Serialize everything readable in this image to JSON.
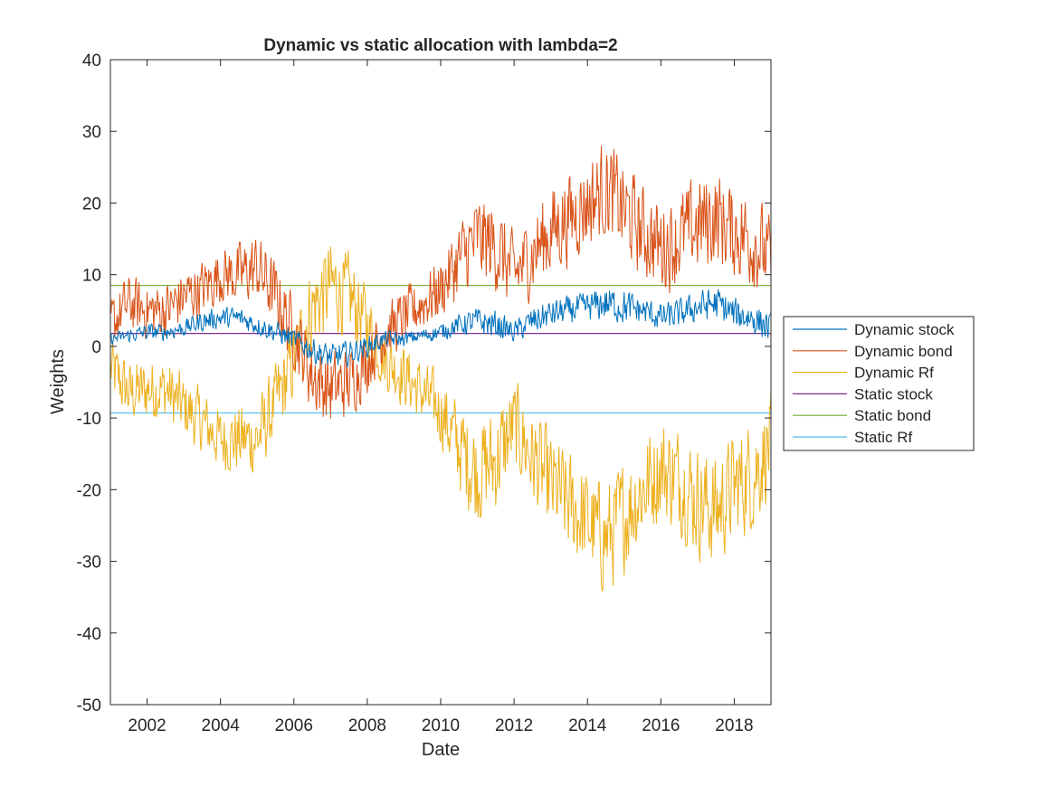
{
  "chart_data": {
    "type": "line",
    "title": "Dynamic vs static allocation with lambda=2",
    "xlabel": "Date",
    "ylabel": "Weights",
    "xlim": [
      2001.0,
      2019.0
    ],
    "ylim": [
      -50,
      40
    ],
    "xticks": [
      2002,
      2004,
      2006,
      2008,
      2010,
      2012,
      2014,
      2016,
      2018
    ],
    "yticks": [
      40,
      30,
      20,
      10,
      0,
      -10,
      -20,
      -30,
      -40,
      -50
    ],
    "grid": false,
    "legend_placement": "outside-right",
    "dynamic_step_years": 0.02,
    "series": [
      {
        "name": "Dynamic stock",
        "color": "#0072BD",
        "anchors": {
          "x": [
            2001.0,
            2001.5,
            2002.0,
            2002.5,
            2003.0,
            2003.5,
            2004.0,
            2004.5,
            2005.0,
            2005.5,
            2006.0,
            2006.5,
            2007.0,
            2007.5,
            2008.0,
            2008.5,
            2009.0,
            2009.5,
            2010.0,
            2010.5,
            2011.0,
            2011.5,
            2012.0,
            2012.5,
            2013.0,
            2013.5,
            2014.0,
            2014.5,
            2015.0,
            2015.5,
            2016.0,
            2016.5,
            2017.0,
            2017.5,
            2018.0,
            2018.5,
            2019.0
          ],
          "y": [
            1.0,
            1.5,
            2.0,
            2.0,
            2.5,
            3.5,
            4.0,
            4.0,
            3.0,
            2.0,
            1.0,
            -0.5,
            -1.5,
            -1.0,
            0.0,
            1.0,
            1.0,
            1.5,
            2.0,
            3.0,
            3.5,
            3.0,
            2.0,
            3.5,
            4.5,
            5.0,
            5.5,
            6.0,
            5.5,
            5.0,
            4.0,
            4.5,
            5.5,
            6.0,
            4.5,
            4.0,
            2.5
          ]
        },
        "amplitude": [
          0.8,
          1.0,
          1.2,
          1.2,
          1.2,
          1.5,
          1.5,
          1.5,
          1.5,
          1.5,
          1.5,
          1.8,
          1.8,
          1.8,
          1.5,
          1.2,
          1.0,
          1.0,
          1.2,
          1.5,
          2.0,
          2.0,
          1.5,
          2.0,
          2.0,
          2.0,
          2.0,
          2.5,
          2.5,
          2.0,
          2.0,
          2.0,
          2.2,
          2.5,
          2.2,
          2.5,
          2.0
        ]
      },
      {
        "name": "Dynamic bond",
        "color": "#D95319",
        "anchors": {
          "x": [
            2001.0,
            2001.5,
            2002.0,
            2002.5,
            2003.0,
            2003.5,
            2004.0,
            2004.5,
            2005.0,
            2005.5,
            2006.0,
            2006.5,
            2007.0,
            2007.5,
            2008.0,
            2008.5,
            2009.0,
            2009.5,
            2010.0,
            2010.5,
            2011.0,
            2011.5,
            2012.0,
            2012.5,
            2013.0,
            2013.5,
            2014.0,
            2014.5,
            2015.0,
            2015.5,
            2016.0,
            2016.5,
            2017.0,
            2017.5,
            2018.0,
            2018.5,
            2019.0
          ],
          "y": [
            3.0,
            6.0,
            5.0,
            5.0,
            7.0,
            8.0,
            10.0,
            10.0,
            11.0,
            7.0,
            2.0,
            -4.0,
            -6.0,
            -5.0,
            -2.0,
            2.0,
            4.0,
            6.0,
            8.0,
            12.0,
            15.0,
            14.0,
            10.0,
            13.0,
            16.0,
            18.0,
            20.0,
            22.0,
            19.0,
            16.0,
            14.0,
            15.0,
            17.0,
            18.0,
            16.0,
            15.0,
            12.0
          ]
        },
        "amplitude": [
          4.0,
          4.0,
          4.0,
          4.0,
          4.0,
          4.0,
          4.0,
          4.5,
          5.0,
          5.0,
          5.0,
          5.5,
          5.5,
          5.0,
          4.5,
          4.0,
          4.0,
          4.0,
          4.5,
          5.5,
          6.5,
          6.5,
          5.5,
          6.0,
          6.5,
          6.5,
          6.5,
          7.0,
          7.0,
          6.5,
          6.5,
          6.5,
          7.0,
          7.0,
          6.5,
          7.0,
          6.0
        ]
      },
      {
        "name": "Dynamic Rf",
        "color": "#EDB120",
        "anchors": {
          "x": [
            2001.0,
            2001.5,
            2002.0,
            2002.5,
            2003.0,
            2003.5,
            2004.0,
            2004.5,
            2005.0,
            2005.5,
            2006.0,
            2006.5,
            2007.0,
            2007.5,
            2008.0,
            2008.5,
            2009.0,
            2009.5,
            2010.0,
            2010.5,
            2011.0,
            2011.5,
            2012.0,
            2012.5,
            2013.0,
            2013.5,
            2014.0,
            2014.5,
            2015.0,
            2015.5,
            2016.0,
            2016.5,
            2017.0,
            2017.5,
            2018.0,
            2018.5,
            2019.0
          ],
          "y": [
            -3.0,
            -6.5,
            -6.0,
            -6.0,
            -8.5,
            -10.5,
            -13.0,
            -13.0,
            -13.0,
            -8.0,
            -2.0,
            5.5,
            8.5,
            7.0,
            3.0,
            -2.0,
            -4.0,
            -6.5,
            -9.0,
            -14.0,
            -17.5,
            -16.0,
            -11.0,
            -15.5,
            -19.5,
            -22.0,
            -24.5,
            -27.0,
            -23.5,
            -20.0,
            -17.0,
            -18.5,
            -21.5,
            -23.0,
            -19.5,
            -18.0,
            -13.5
          ]
        },
        "amplitude": [
          4.5,
          4.5,
          4.5,
          4.5,
          4.5,
          4.5,
          4.5,
          5.0,
          5.5,
          5.5,
          6.0,
          6.5,
          6.5,
          6.0,
          5.5,
          4.5,
          4.5,
          4.5,
          5.0,
          6.5,
          7.5,
          7.5,
          6.5,
          7.0,
          7.5,
          7.5,
          7.5,
          8.0,
          8.0,
          7.5,
          7.5,
          7.5,
          8.0,
          8.0,
          7.5,
          8.0,
          7.0
        ]
      },
      {
        "name": "Static stock",
        "color": "#7E2F8E",
        "constant": 1.8
      },
      {
        "name": "Static bond",
        "color": "#77AC30",
        "constant": 8.5
      },
      {
        "name": "Static Rf",
        "color": "#4DBEEE",
        "constant": -9.3
      }
    ]
  }
}
